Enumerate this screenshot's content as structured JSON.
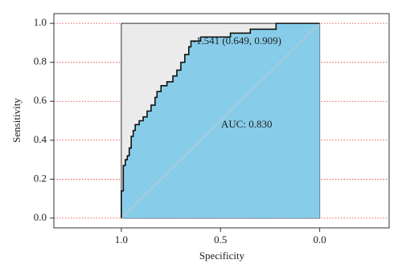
{
  "chart_data": {
    "type": "roc",
    "x_label": "Specificity",
    "y_label": "Sensitivity",
    "xlim": [
      1.34,
      -0.35
    ],
    "ylim": [
      -0.05,
      1.05
    ],
    "xticks": [
      {
        "value": 1,
        "label": "1.0"
      },
      {
        "value": 0.5,
        "label": "0.5"
      },
      {
        "value": 0,
        "label": "0.0"
      }
    ],
    "yticks": [
      {
        "value": 0,
        "label": "0.0"
      },
      {
        "value": 0.2,
        "label": "0.2"
      },
      {
        "value": 0.4,
        "label": "0.4"
      },
      {
        "value": 0.6,
        "label": "0.6"
      },
      {
        "value": 0.8,
        "label": "0.8"
      },
      {
        "value": 1,
        "label": "1.0"
      }
    ],
    "grid": true,
    "grid_color": "#e03030",
    "series": [
      {
        "color": "#87cdea",
        "x": [
          1.0,
          1.0,
          0.99,
          0.99,
          0.98,
          0.98,
          0.97,
          0.97,
          0.96,
          0.96,
          0.95,
          0.95,
          0.94,
          0.94,
          0.93,
          0.93,
          0.91,
          0.91,
          0.89,
          0.89,
          0.87,
          0.87,
          0.85,
          0.85,
          0.83,
          0.83,
          0.82,
          0.82,
          0.8,
          0.8,
          0.77,
          0.77,
          0.74,
          0.74,
          0.72,
          0.72,
          0.7,
          0.7,
          0.68,
          0.68,
          0.66,
          0.66,
          0.649,
          0.649,
          0.6,
          0.6,
          0.45,
          0.45,
          0.35,
          0.35,
          0.22,
          0.22,
          0.0
        ],
        "values": [
          0.0,
          0.14,
          0.14,
          0.27,
          0.27,
          0.3,
          0.3,
          0.32,
          0.32,
          0.36,
          0.36,
          0.42,
          0.42,
          0.45,
          0.45,
          0.48,
          0.48,
          0.5,
          0.5,
          0.52,
          0.52,
          0.55,
          0.55,
          0.58,
          0.58,
          0.62,
          0.62,
          0.65,
          0.65,
          0.68,
          0.68,
          0.7,
          0.7,
          0.73,
          0.73,
          0.76,
          0.76,
          0.8,
          0.8,
          0.84,
          0.84,
          0.88,
          0.88,
          0.909,
          0.909,
          0.93,
          0.93,
          0.95,
          0.95,
          0.97,
          0.97,
          1.0,
          1.0
        ]
      }
    ],
    "best_point": {
      "x": 0.649,
      "y": 0.909,
      "label": "-1.541 (0.649, 0.909)"
    },
    "auc_label": "AUC: 0.830"
  }
}
